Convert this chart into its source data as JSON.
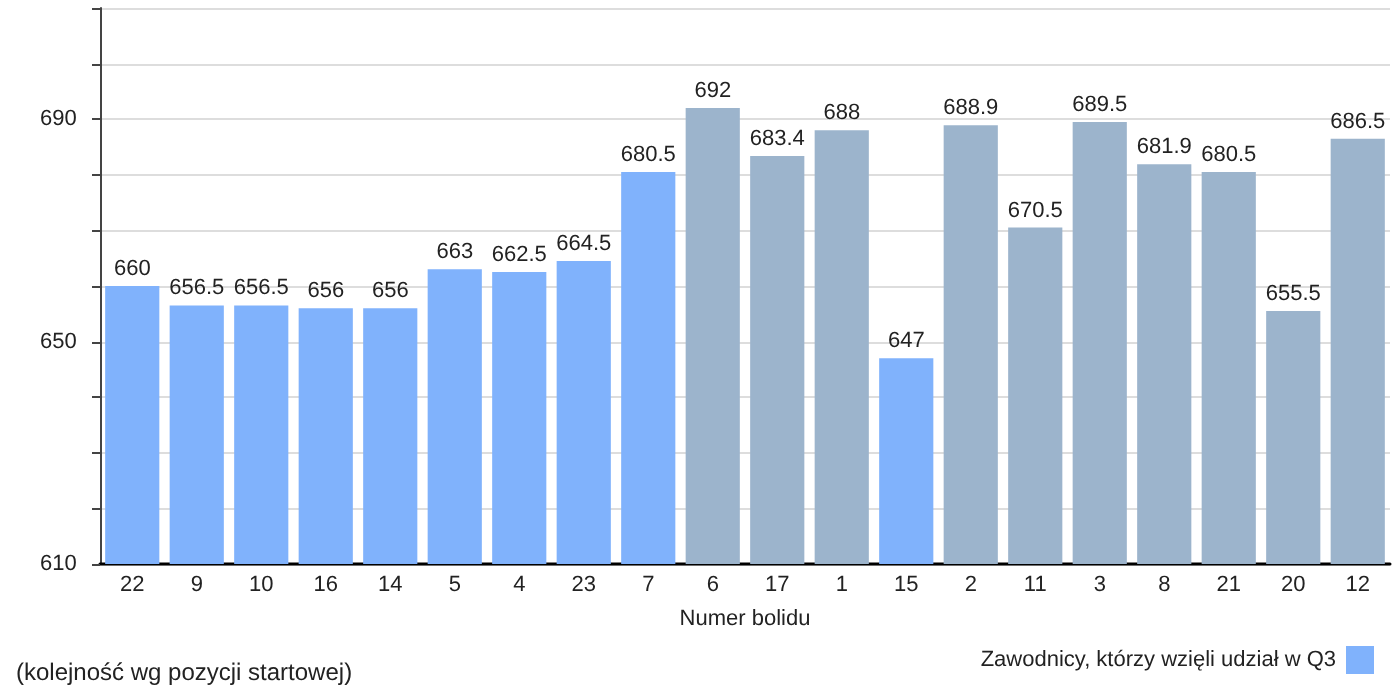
{
  "chart_data": {
    "type": "bar",
    "xlabel": "Numer bolidu",
    "categories": [
      "22",
      "9",
      "10",
      "16",
      "14",
      "5",
      "4",
      "23",
      "7",
      "6",
      "17",
      "1",
      "15",
      "2",
      "11",
      "3",
      "8",
      "21",
      "20",
      "12"
    ],
    "series": [
      {
        "name": "Zawodnicy, którzy wzięli udział w Q3",
        "color": "#80b2fc",
        "values": [
          660,
          656.5,
          656.5,
          656,
          656,
          663,
          662.5,
          664.5,
          680.5,
          null,
          null,
          null,
          647,
          null,
          null,
          null,
          null,
          null,
          null,
          null
        ]
      },
      {
        "color": "#9cb4cc",
        "values": [
          null,
          null,
          null,
          null,
          null,
          null,
          null,
          null,
          null,
          692,
          683.4,
          688,
          null,
          688.9,
          670.5,
          689.5,
          681.9,
          680.5,
          655.5,
          686.5
        ]
      }
    ],
    "stacked": true,
    "ylim": [
      610,
      710
    ],
    "yticks": [
      610,
      {
        "value": 620,
        "label": null
      },
      {
        "value": 630,
        "label": null
      },
      {
        "value": 640,
        "label": null
      },
      650,
      {
        "value": 660,
        "label": null
      },
      {
        "value": 670,
        "label": null
      },
      {
        "value": 680,
        "label": null
      },
      690,
      {
        "value": 700,
        "label": null
      },
      {
        "value": 710,
        "label": null
      }
    ],
    "grid": "y",
    "data_labels": true,
    "legend": "bottom right",
    "annotations": [
      "(kolejność wg pozycji startowej)"
    ]
  }
}
